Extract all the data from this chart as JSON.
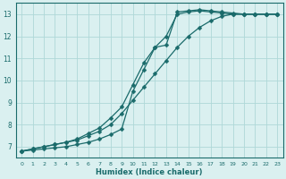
{
  "xlabel": "Humidex (Indice chaleur)",
  "bg_color": "#daf0f0",
  "grid_color": "#aed8d8",
  "line_color": "#1a6b6b",
  "xlim": [
    -0.5,
    23.5
  ],
  "ylim": [
    6.5,
    13.5
  ],
  "xticks": [
    0,
    1,
    2,
    3,
    4,
    5,
    6,
    7,
    8,
    9,
    10,
    11,
    12,
    13,
    14,
    15,
    16,
    17,
    18,
    19,
    20,
    21,
    22,
    23
  ],
  "yticks": [
    7,
    8,
    9,
    10,
    11,
    12,
    13
  ],
  "curve1_x": [
    0,
    1,
    2,
    3,
    4,
    5,
    6,
    7,
    8,
    9,
    10,
    11,
    12,
    13,
    14,
    15,
    16,
    17,
    18,
    19,
    20,
    21,
    22,
    23
  ],
  "curve1_y": [
    6.8,
    6.9,
    7.0,
    7.1,
    7.2,
    7.3,
    7.5,
    7.7,
    8.0,
    8.5,
    9.1,
    9.7,
    10.3,
    10.9,
    11.5,
    12.0,
    12.4,
    12.7,
    12.9,
    13.0,
    13.0,
    13.0,
    13.0,
    13.0
  ],
  "curve2_x": [
    0,
    1,
    2,
    3,
    4,
    5,
    6,
    7,
    8,
    9,
    10,
    11,
    12,
    13,
    14,
    15,
    16,
    17,
    18,
    19,
    20,
    21,
    22,
    23
  ],
  "curve2_y": [
    6.8,
    6.9,
    7.0,
    7.1,
    7.2,
    7.35,
    7.6,
    7.85,
    8.3,
    8.8,
    9.8,
    10.8,
    11.5,
    12.0,
    13.0,
    13.1,
    13.15,
    13.1,
    13.05,
    13.0,
    13.0,
    13.0,
    13.0,
    13.0
  ],
  "curve3_x": [
    0,
    1,
    2,
    3,
    4,
    5,
    6,
    7,
    8,
    9,
    10,
    11,
    12,
    13,
    14,
    15,
    16,
    17,
    18,
    19,
    20,
    21,
    22,
    23
  ],
  "curve3_y": [
    6.8,
    6.85,
    6.9,
    6.95,
    7.0,
    7.1,
    7.2,
    7.35,
    7.55,
    7.8,
    9.5,
    10.5,
    11.5,
    11.6,
    13.1,
    13.15,
    13.2,
    13.15,
    13.1,
    13.05,
    13.0,
    13.0,
    13.0,
    13.0
  ]
}
